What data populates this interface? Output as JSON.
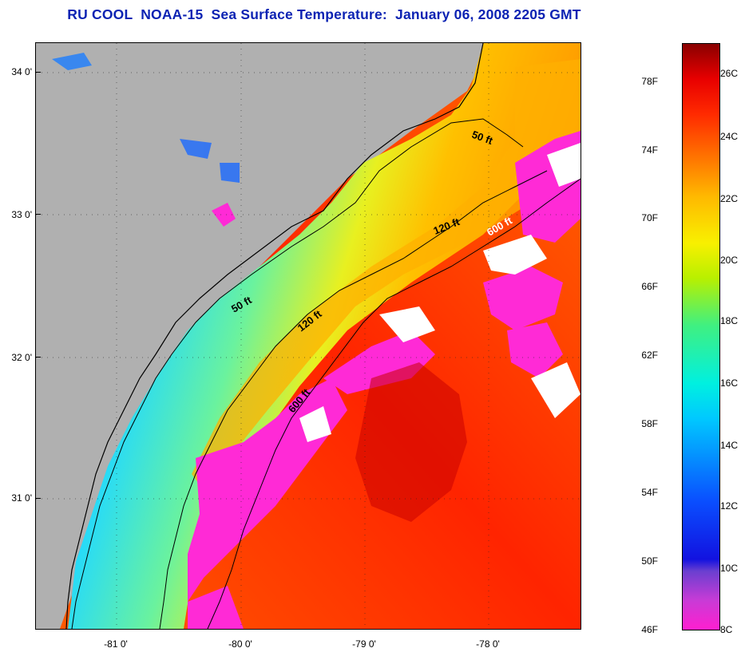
{
  "title": "RU COOL  NOAA-15  Sea Surface Temperature:  January 06, 2008 2205 GMT",
  "latitude_labels": [
    "34 0'",
    "33 0'",
    "32 0'",
    "31 0'"
  ],
  "longitude_labels": [
    "-81 0'",
    "-80 0'",
    "-79 0'",
    "-78 0'"
  ],
  "contour_labels": {
    "north_50": "50 ft",
    "north_120": "120 ft",
    "north_600": "600 ft",
    "south_50": "50 ft",
    "south_120": "120 ft",
    "south_600": "600 ft"
  },
  "colorbar": {
    "fahrenheit": [
      "78F",
      "74F",
      "70F",
      "66F",
      "62F",
      "58F",
      "54F",
      "50F",
      "46F"
    ],
    "celsius": [
      "26C",
      "24C",
      "22C",
      "20C",
      "18C",
      "16C",
      "14C",
      "12C",
      "10C",
      "8C"
    ]
  },
  "colors": {
    "title": "#0c23b3",
    "land": "#b0b0b0",
    "cloud_mask": "#ff2ad6",
    "warm_water": "#ff3a00"
  }
}
